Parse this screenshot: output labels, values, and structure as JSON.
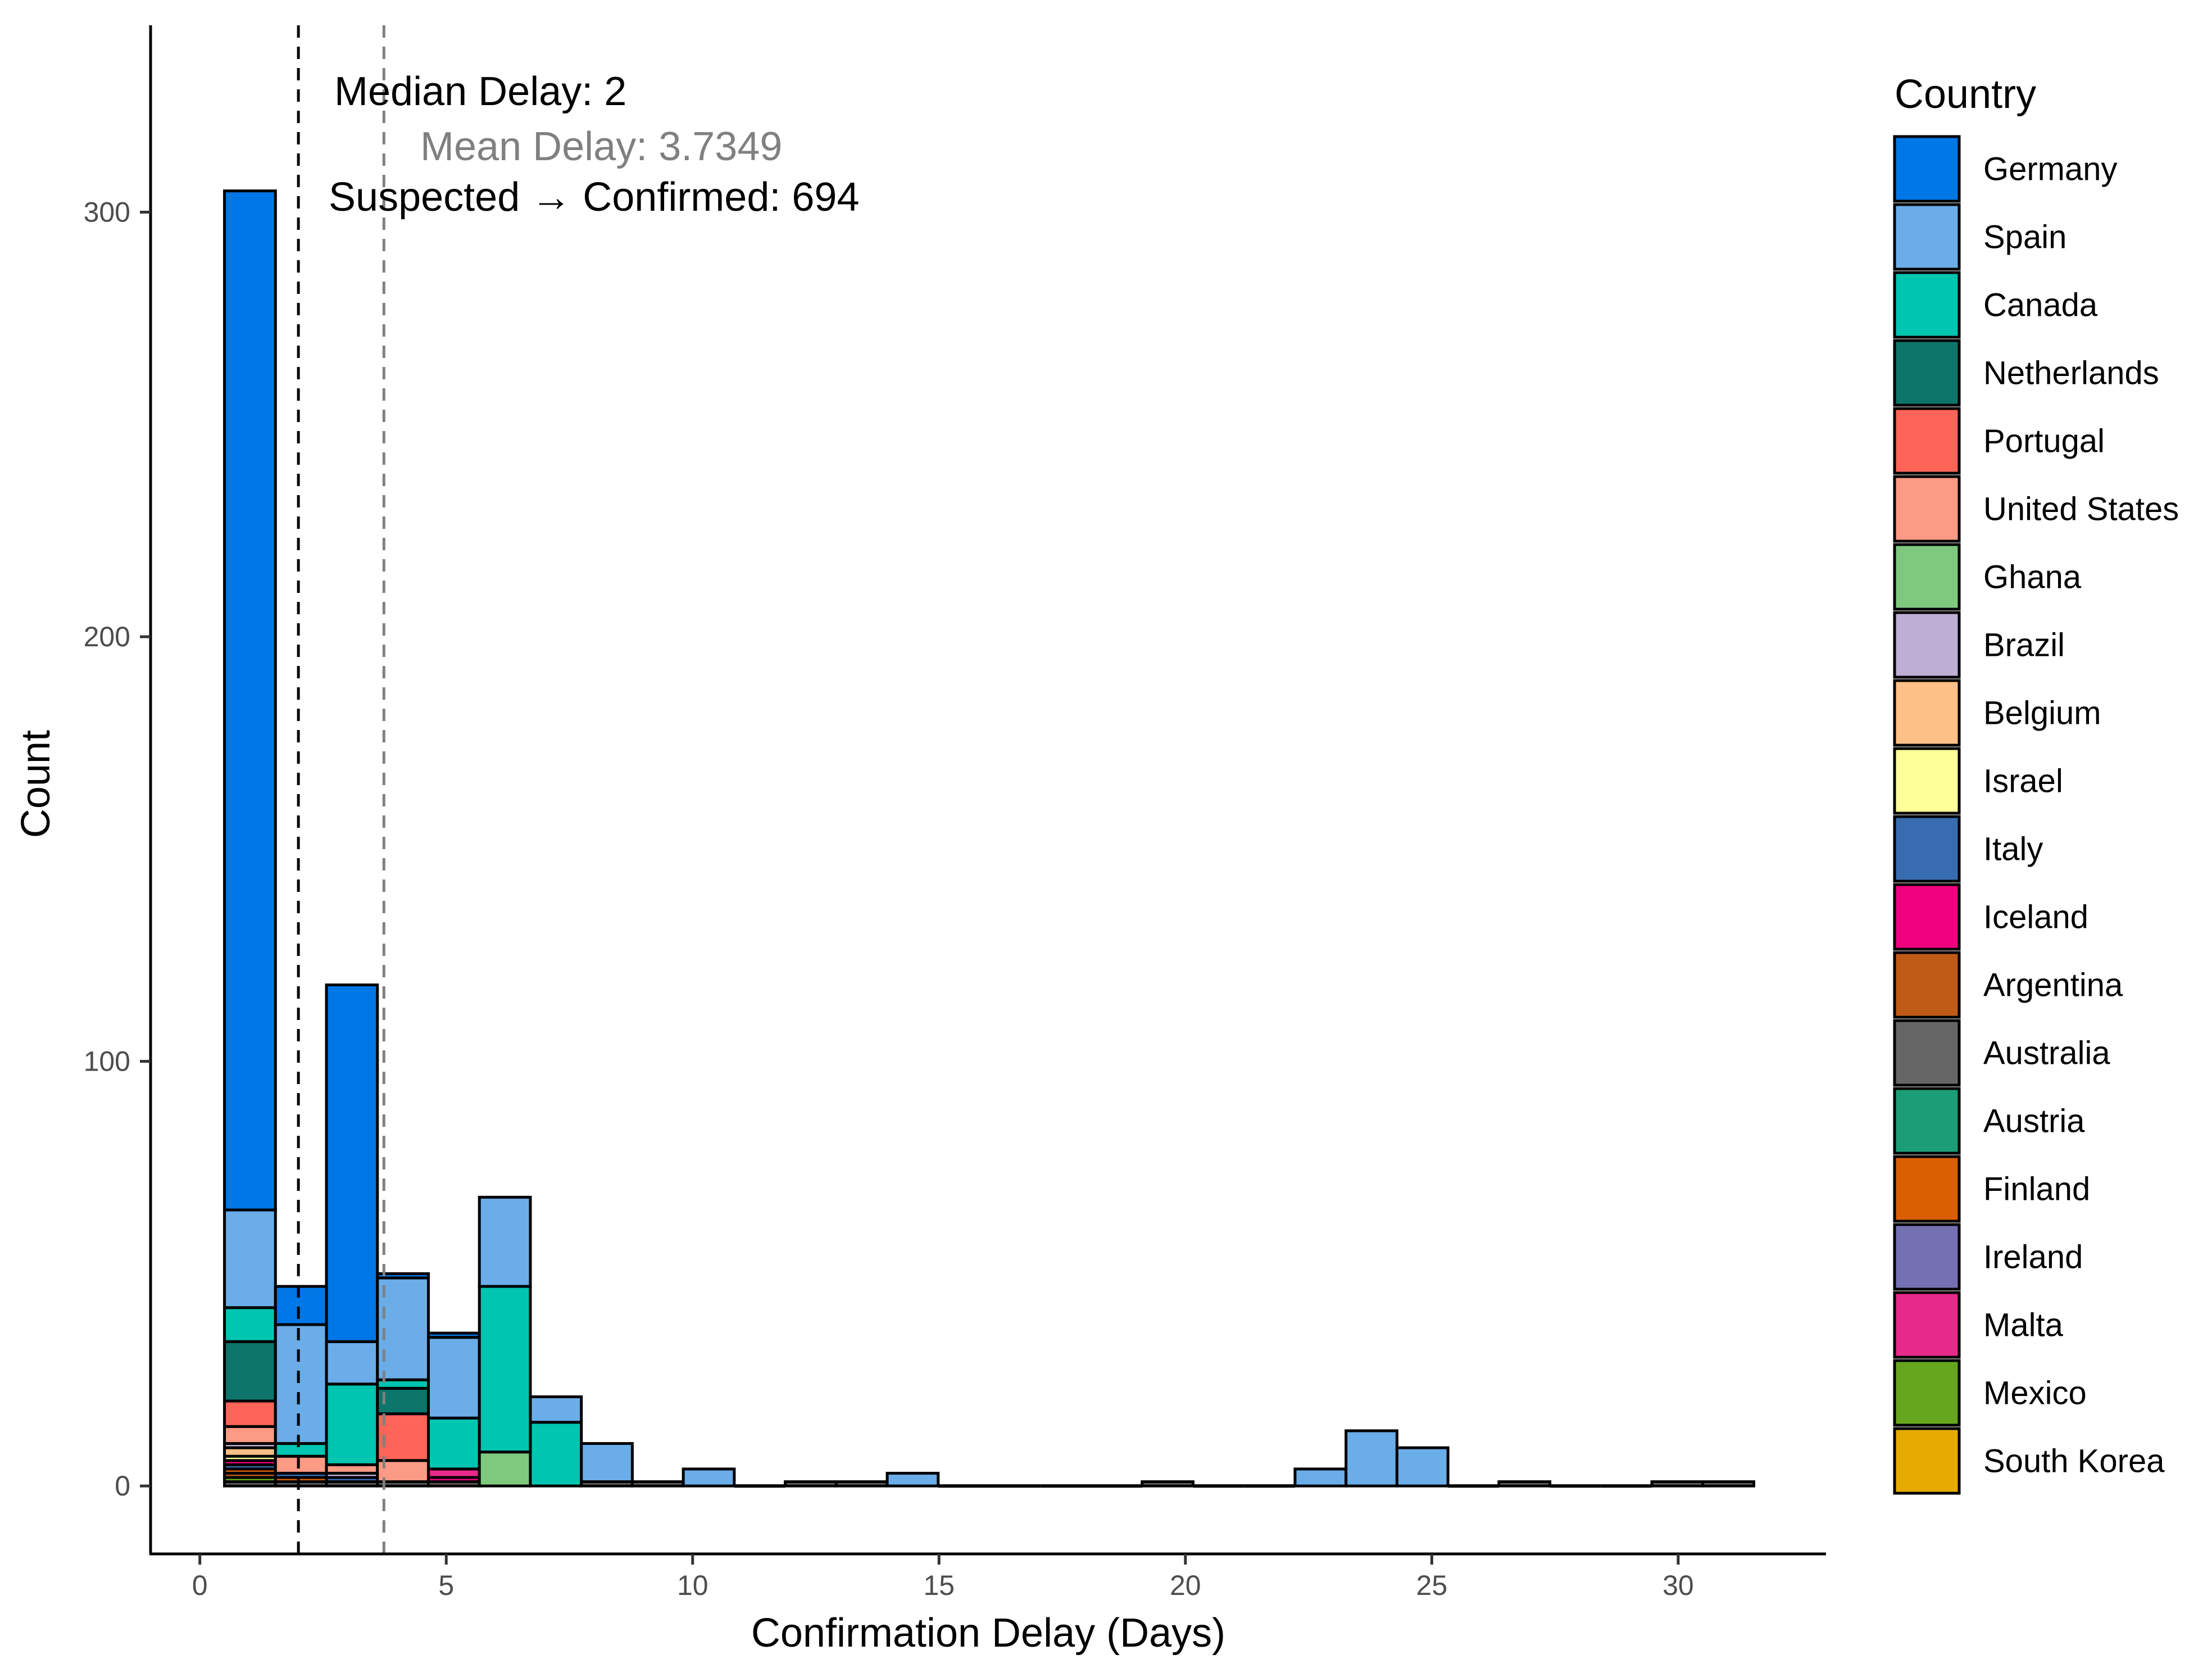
{
  "chart_data": {
    "type": "bar",
    "subtype": "stacked-histogram",
    "xlabel": "Confirmation Delay (Days)",
    "ylabel": "Count",
    "xlim": [
      -1,
      33
    ],
    "ylim": [
      -16,
      344
    ],
    "x_ticks": [
      0,
      5,
      10,
      15,
      20,
      25,
      30
    ],
    "y_ticks": [
      0,
      100,
      200,
      300
    ],
    "grid": false,
    "bin_width": 1.0345,
    "x_start": 0.5,
    "legend": {
      "title": "Country",
      "placement": "right",
      "entries": [
        {
          "name": "Germany",
          "color": "#0077E6"
        },
        {
          "name": "Spain",
          "color": "#6AADE8"
        },
        {
          "name": "Canada",
          "color": "#00C5B0"
        },
        {
          "name": "Netherlands",
          "color": "#0E756A"
        },
        {
          "name": "Portugal",
          "color": "#FF6458"
        },
        {
          "name": "United States",
          "color": "#FB9A85"
        },
        {
          "name": "Ghana",
          "color": "#7FC97F"
        },
        {
          "name": "Brazil",
          "color": "#BEAED4"
        },
        {
          "name": "Belgium",
          "color": "#FDC086"
        },
        {
          "name": "Israel",
          "color": "#FFFF99"
        },
        {
          "name": "Italy",
          "color": "#386CB0"
        },
        {
          "name": "Iceland",
          "color": "#F0027F"
        },
        {
          "name": "Argentina",
          "color": "#BF5B17"
        },
        {
          "name": "Australia",
          "color": "#666666"
        },
        {
          "name": "Austria",
          "color": "#1B9E77"
        },
        {
          "name": "Finland",
          "color": "#D95F02"
        },
        {
          "name": "Ireland",
          "color": "#7570B3"
        },
        {
          "name": "Malta",
          "color": "#E7298A"
        },
        {
          "name": "Mexico",
          "color": "#66A61E"
        },
        {
          "name": "South Korea",
          "color": "#E6AB02"
        }
      ]
    },
    "bins": [
      {
        "segments": [
          [
            "Australia",
            1
          ],
          [
            "Mexico",
            1
          ],
          [
            "Argentina",
            1
          ],
          [
            "Finland",
            1
          ],
          [
            "Italy",
            1
          ],
          [
            "Iceland",
            1
          ],
          [
            "Israel",
            1
          ],
          [
            "Belgium",
            2
          ],
          [
            "Brazil",
            1
          ],
          [
            "Ghana",
            0
          ],
          [
            "United States",
            4
          ],
          [
            "Portugal",
            6
          ],
          [
            "Netherlands",
            14
          ],
          [
            "Canada",
            8
          ],
          [
            "Spain",
            23
          ],
          [
            "Germany",
            240
          ]
        ]
      },
      {
        "segments": [
          [
            "Australia",
            1
          ],
          [
            "Finland",
            1
          ],
          [
            "Italy",
            1
          ],
          [
            "United States",
            4
          ],
          [
            "Canada",
            3
          ],
          [
            "Spain",
            28
          ],
          [
            "Germany",
            9
          ]
        ]
      },
      {
        "segments": [
          [
            "Australia",
            1
          ],
          [
            "Italy",
            1
          ],
          [
            "Brazil",
            1
          ],
          [
            "United States",
            2
          ],
          [
            "Canada",
            19
          ],
          [
            "Spain",
            10
          ],
          [
            "Germany",
            84
          ]
        ]
      },
      {
        "segments": [
          [
            "Australia",
            1
          ],
          [
            "Iceland",
            0
          ],
          [
            "United States",
            5
          ],
          [
            "Portugal",
            11
          ],
          [
            "Netherlands",
            6
          ],
          [
            "Canada",
            2
          ],
          [
            "Spain",
            24
          ],
          [
            "Germany",
            1
          ]
        ]
      },
      {
        "segments": [
          [
            "Australia",
            1
          ],
          [
            "Iceland",
            1
          ],
          [
            "Malta",
            2
          ],
          [
            "Canada",
            12
          ],
          [
            "Spain",
            19
          ],
          [
            "Germany",
            1
          ]
        ]
      },
      {
        "segments": [
          [
            "Ghana",
            8
          ],
          [
            "Canada",
            39
          ],
          [
            "Spain",
            21
          ]
        ]
      },
      {
        "segments": [
          [
            "Canada",
            15
          ],
          [
            "Spain",
            6
          ]
        ]
      },
      {
        "segments": [
          [
            "Australia",
            1
          ],
          [
            "Spain",
            9
          ]
        ]
      },
      {
        "segments": [
          [
            "Australia",
            1
          ]
        ]
      },
      {
        "segments": [
          [
            "Spain",
            4
          ]
        ]
      },
      {
        "segments": []
      },
      {
        "segments": [
          [
            "Australia",
            1
          ]
        ]
      },
      {
        "segments": [
          [
            "Australia",
            1
          ]
        ]
      },
      {
        "segments": [
          [
            "Spain",
            3
          ]
        ]
      },
      {
        "segments": []
      },
      {
        "segments": []
      },
      {
        "segments": []
      },
      {
        "segments": []
      },
      {
        "segments": [
          [
            "Australia",
            1
          ]
        ]
      },
      {
        "segments": []
      },
      {
        "segments": []
      },
      {
        "segments": [
          [
            "Spain",
            4
          ]
        ]
      },
      {
        "segments": [
          [
            "Spain",
            13
          ]
        ]
      },
      {
        "segments": [
          [
            "Spain",
            9
          ]
        ]
      },
      {
        "segments": []
      },
      {
        "segments": [
          [
            "Australia",
            1
          ]
        ]
      },
      {
        "segments": []
      },
      {
        "segments": []
      },
      {
        "segments": [
          [
            "Australia",
            1
          ]
        ]
      },
      {
        "segments": [
          [
            "Australia",
            1
          ]
        ]
      }
    ],
    "reference_lines": [
      {
        "label": "Median Delay: 2",
        "x": 2,
        "color": "#000000"
      },
      {
        "label": "Mean Delay: 3.7349",
        "x": 3.7349,
        "color": "#808080"
      }
    ],
    "annotations": [
      {
        "text": "Median Delay: 2",
        "color": "#000000"
      },
      {
        "text": "Mean Delay: 3.7349",
        "color": "#808080"
      },
      {
        "text": "Suspected → Confirmed: 694",
        "color": "#000000"
      }
    ]
  }
}
